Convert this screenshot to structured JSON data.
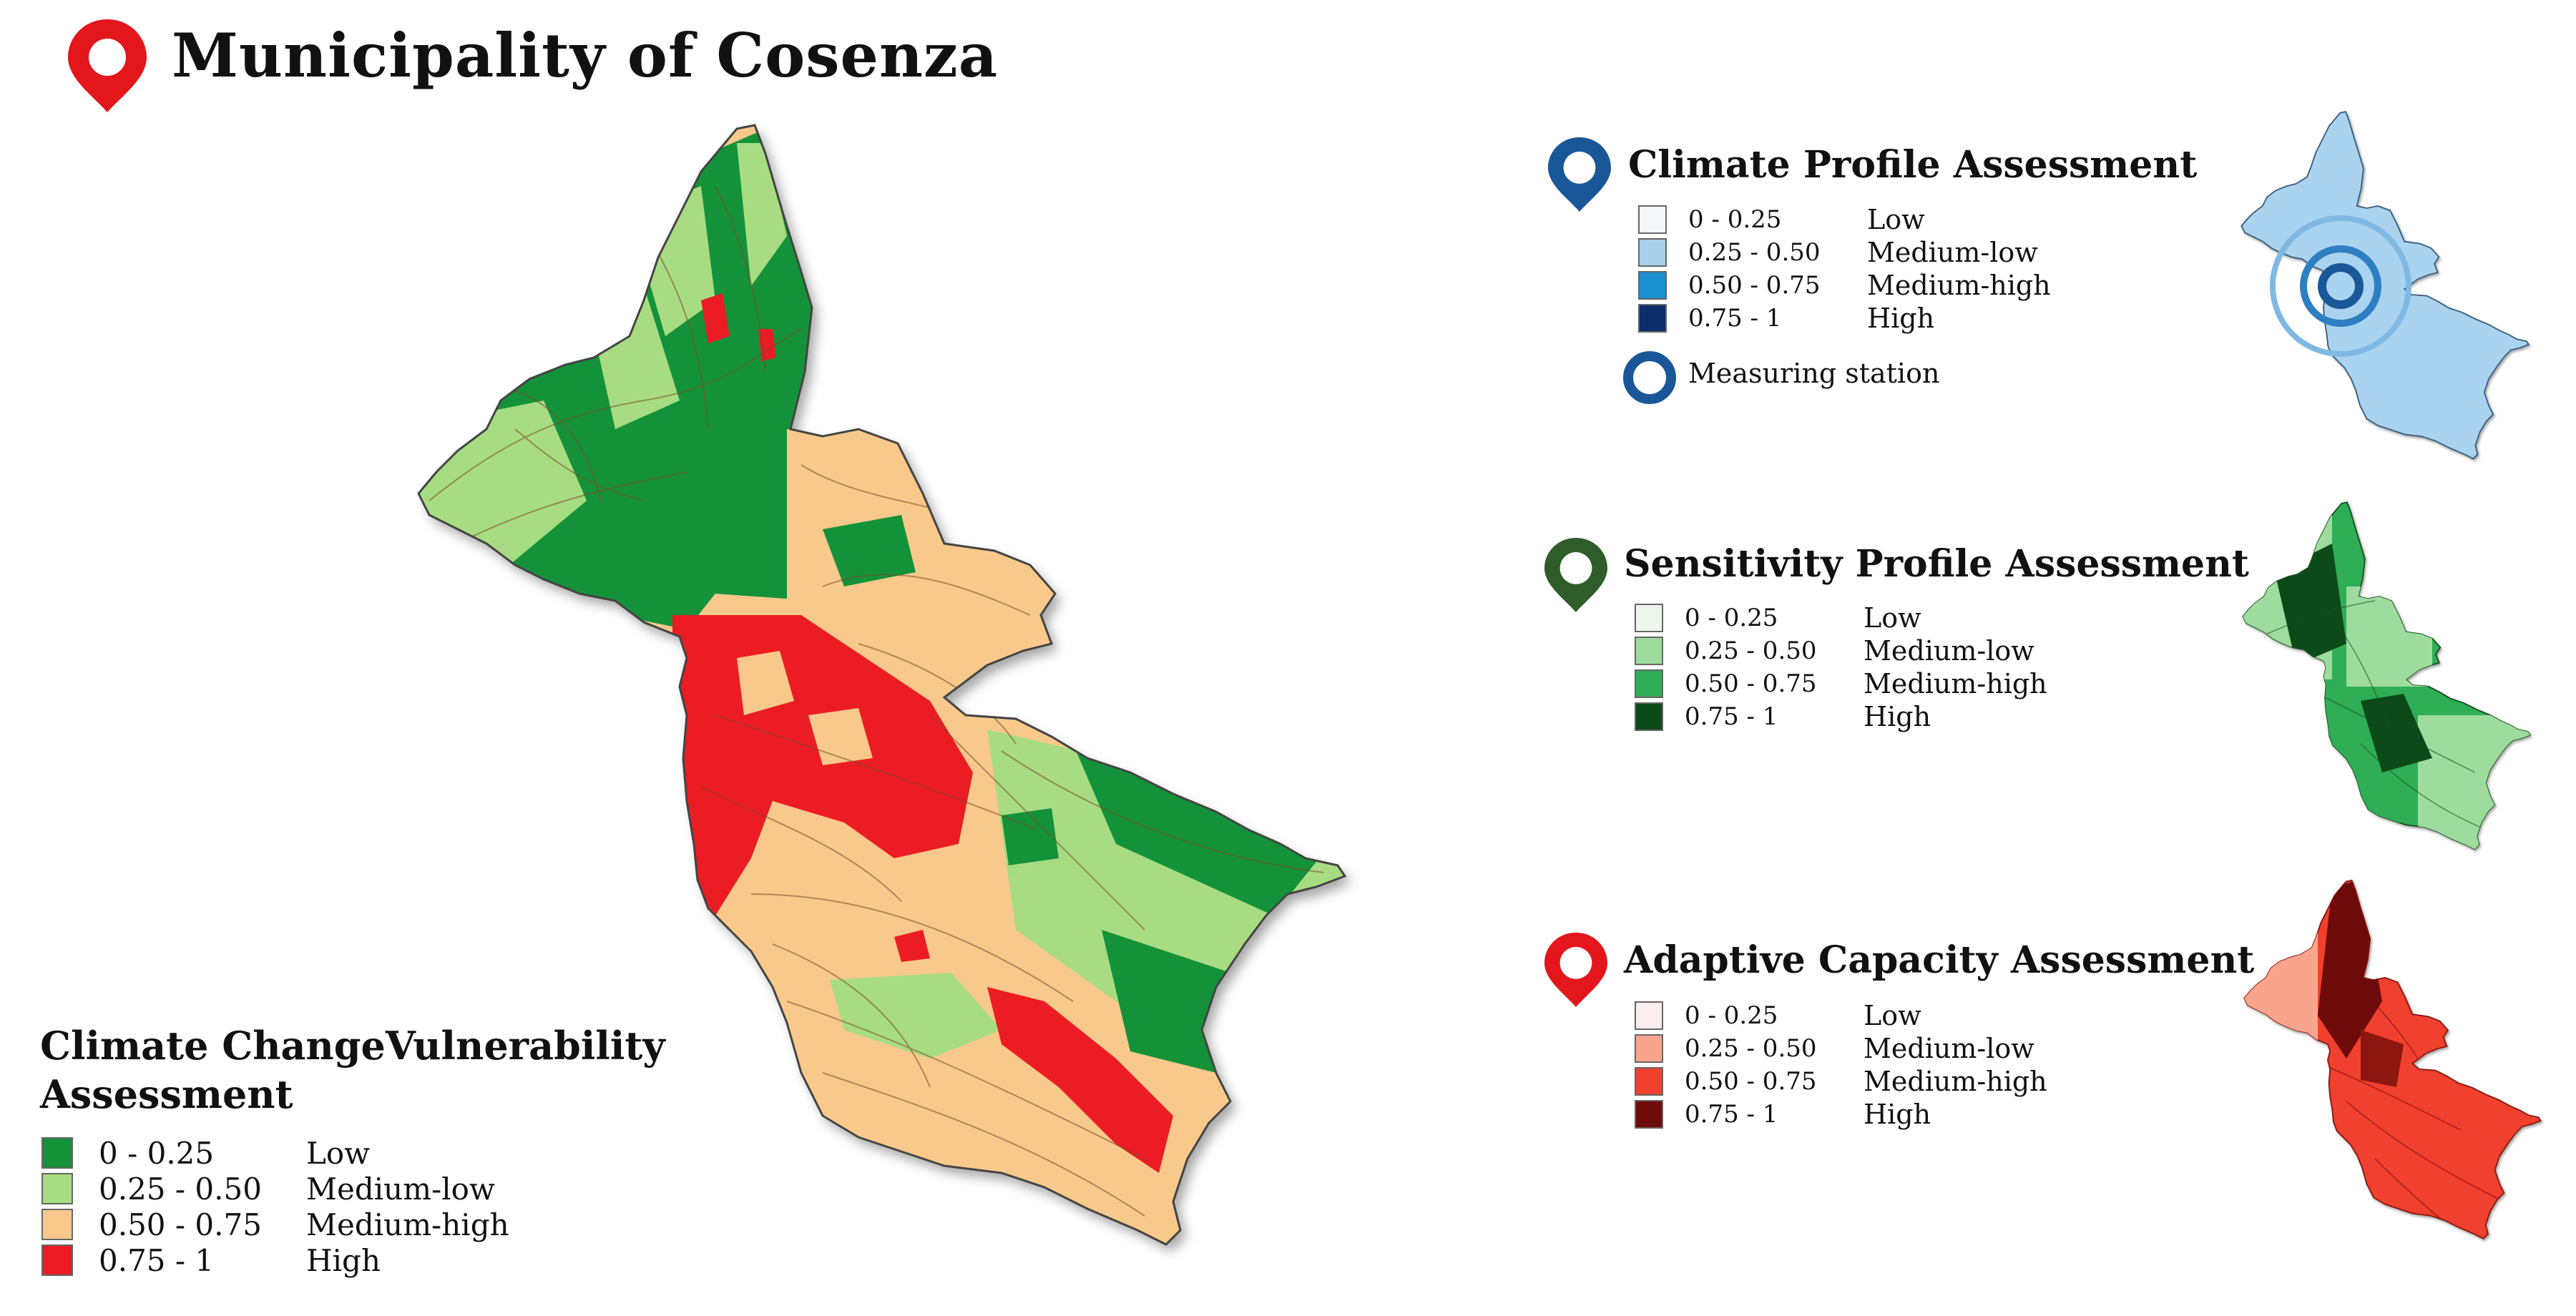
{
  "title": "Municipality of Cosenza",
  "main_map": {
    "legend_title_line1": "Climate ChangeVulnerability",
    "legend_title_line2": "Assessment",
    "classes": [
      {
        "range": "0 - 0.25",
        "level": "Low",
        "color": "#14923a"
      },
      {
        "range": "0.25 - 0.50",
        "level": "Medium-low",
        "color": "#a8dc82"
      },
      {
        "range": "0.50 - 0.75",
        "level": "Medium-high",
        "color": "#f8c98a"
      },
      {
        "range": "0.75 - 1",
        "level": "High",
        "color": "#ec1c24"
      }
    ]
  },
  "climate_profile": {
    "title": "Climate Profile Assessment",
    "pin_color": "#1a5799",
    "classes": [
      {
        "range": "0 - 0.25",
        "level": "Low",
        "color": "#f4f8fc"
      },
      {
        "range": "0.25 - 0.50",
        "level": "Medium-low",
        "color": "#a9d0ea"
      },
      {
        "range": "0.50 - 0.75",
        "level": "Medium-high",
        "color": "#1b8fcf"
      },
      {
        "range": "0.75 - 1",
        "level": "High",
        "color": "#0d2d6b"
      }
    ],
    "station_label": "Measuring station",
    "station_color": "#1a5799",
    "map_fill": "#a9d3ee"
  },
  "sensitivity_profile": {
    "title": "Sensitivity Profile Assessment",
    "pin_color": "#2e5d2a",
    "classes": [
      {
        "range": "0 - 0.25",
        "level": "Low",
        "color": "#eef7ec"
      },
      {
        "range": "0.25 - 0.50",
        "level": "Medium-low",
        "color": "#9ddc9c"
      },
      {
        "range": "0.50 - 0.75",
        "level": "Medium-high",
        "color": "#2fae55"
      },
      {
        "range": "0.75 - 1",
        "level": "High",
        "color": "#0c4a1a"
      }
    ]
  },
  "adaptive_capacity": {
    "title": "Adaptive Capacity Assessment",
    "pin_color": "#e3161c",
    "classes": [
      {
        "range": "0 - 0.25",
        "level": "Low",
        "color": "#fdeeee"
      },
      {
        "range": "0.25 - 0.50",
        "level": "Medium-low",
        "color": "#f9a58e"
      },
      {
        "range": "0.50 - 0.75",
        "level": "Medium-high",
        "color": "#f0402e"
      },
      {
        "range": "0.75 - 1",
        "level": "High",
        "color": "#6e0a0a"
      }
    ]
  },
  "title_pin_color": "#e3161c"
}
